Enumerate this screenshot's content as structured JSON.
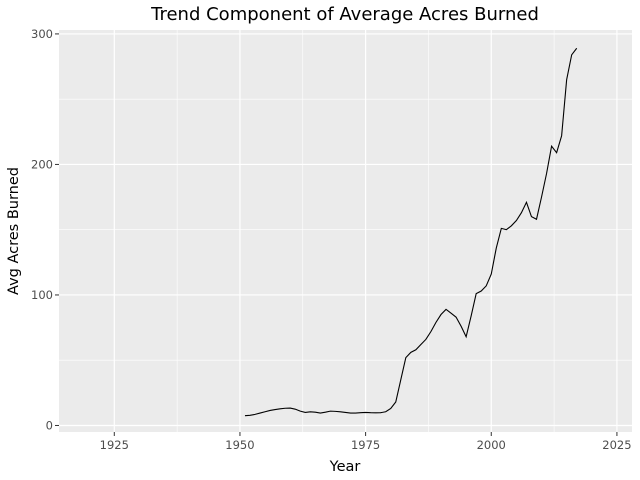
{
  "chart_data": {
    "type": "line",
    "title": "Trend Component of Average Acres Burned",
    "xlabel": "Year",
    "ylabel": "Avg Acres Burned",
    "xlim": [
      1914,
      2028
    ],
    "ylim": [
      -5,
      303
    ],
    "x_ticks": [
      1925,
      1950,
      1975,
      2000,
      2025
    ],
    "y_ticks": [
      0,
      100,
      200,
      300
    ],
    "grid": true,
    "background": "#EBEBEB",
    "grid_color": "#FFFFFF",
    "line_color": "#000000",
    "series": [
      {
        "x": [
          1951,
          1952,
          1953,
          1954,
          1955,
          1956,
          1957,
          1958,
          1959,
          1960,
          1961,
          1962,
          1963,
          1964,
          1965,
          1966,
          1967,
          1968,
          1969,
          1970,
          1971,
          1972,
          1973,
          1974,
          1975,
          1976,
          1977,
          1978,
          1979,
          1980,
          1981,
          1982,
          1983,
          1984,
          1985,
          1986,
          1987,
          1988,
          1989,
          1990,
          1991,
          1992,
          1993,
          1994,
          1995,
          1996,
          1997,
          1998,
          1999,
          2000,
          2001,
          2002,
          2003,
          2004,
          2005,
          2006,
          2007,
          2008,
          2009,
          2010,
          2011,
          2012,
          2013,
          2014,
          2015,
          2016,
          2017
        ],
        "values": [
          7.5,
          7.8,
          8.5,
          9.5,
          10.5,
          11.5,
          12.2,
          12.8,
          13.2,
          13.3,
          12.5,
          11,
          10,
          10.5,
          10.2,
          9.5,
          10.2,
          11,
          10.8,
          10.5,
          10,
          9.5,
          9.5,
          9.8,
          10,
          9.8,
          9.7,
          9.8,
          10.5,
          13,
          18,
          35,
          52,
          56,
          58,
          62,
          66,
          72,
          79,
          85,
          89,
          86,
          83,
          76,
          68,
          84,
          101,
          103,
          107,
          116,
          136,
          151,
          150,
          153,
          157,
          163,
          171,
          160,
          158,
          175,
          193,
          214,
          209,
          222,
          265,
          284,
          289
        ]
      }
    ]
  }
}
